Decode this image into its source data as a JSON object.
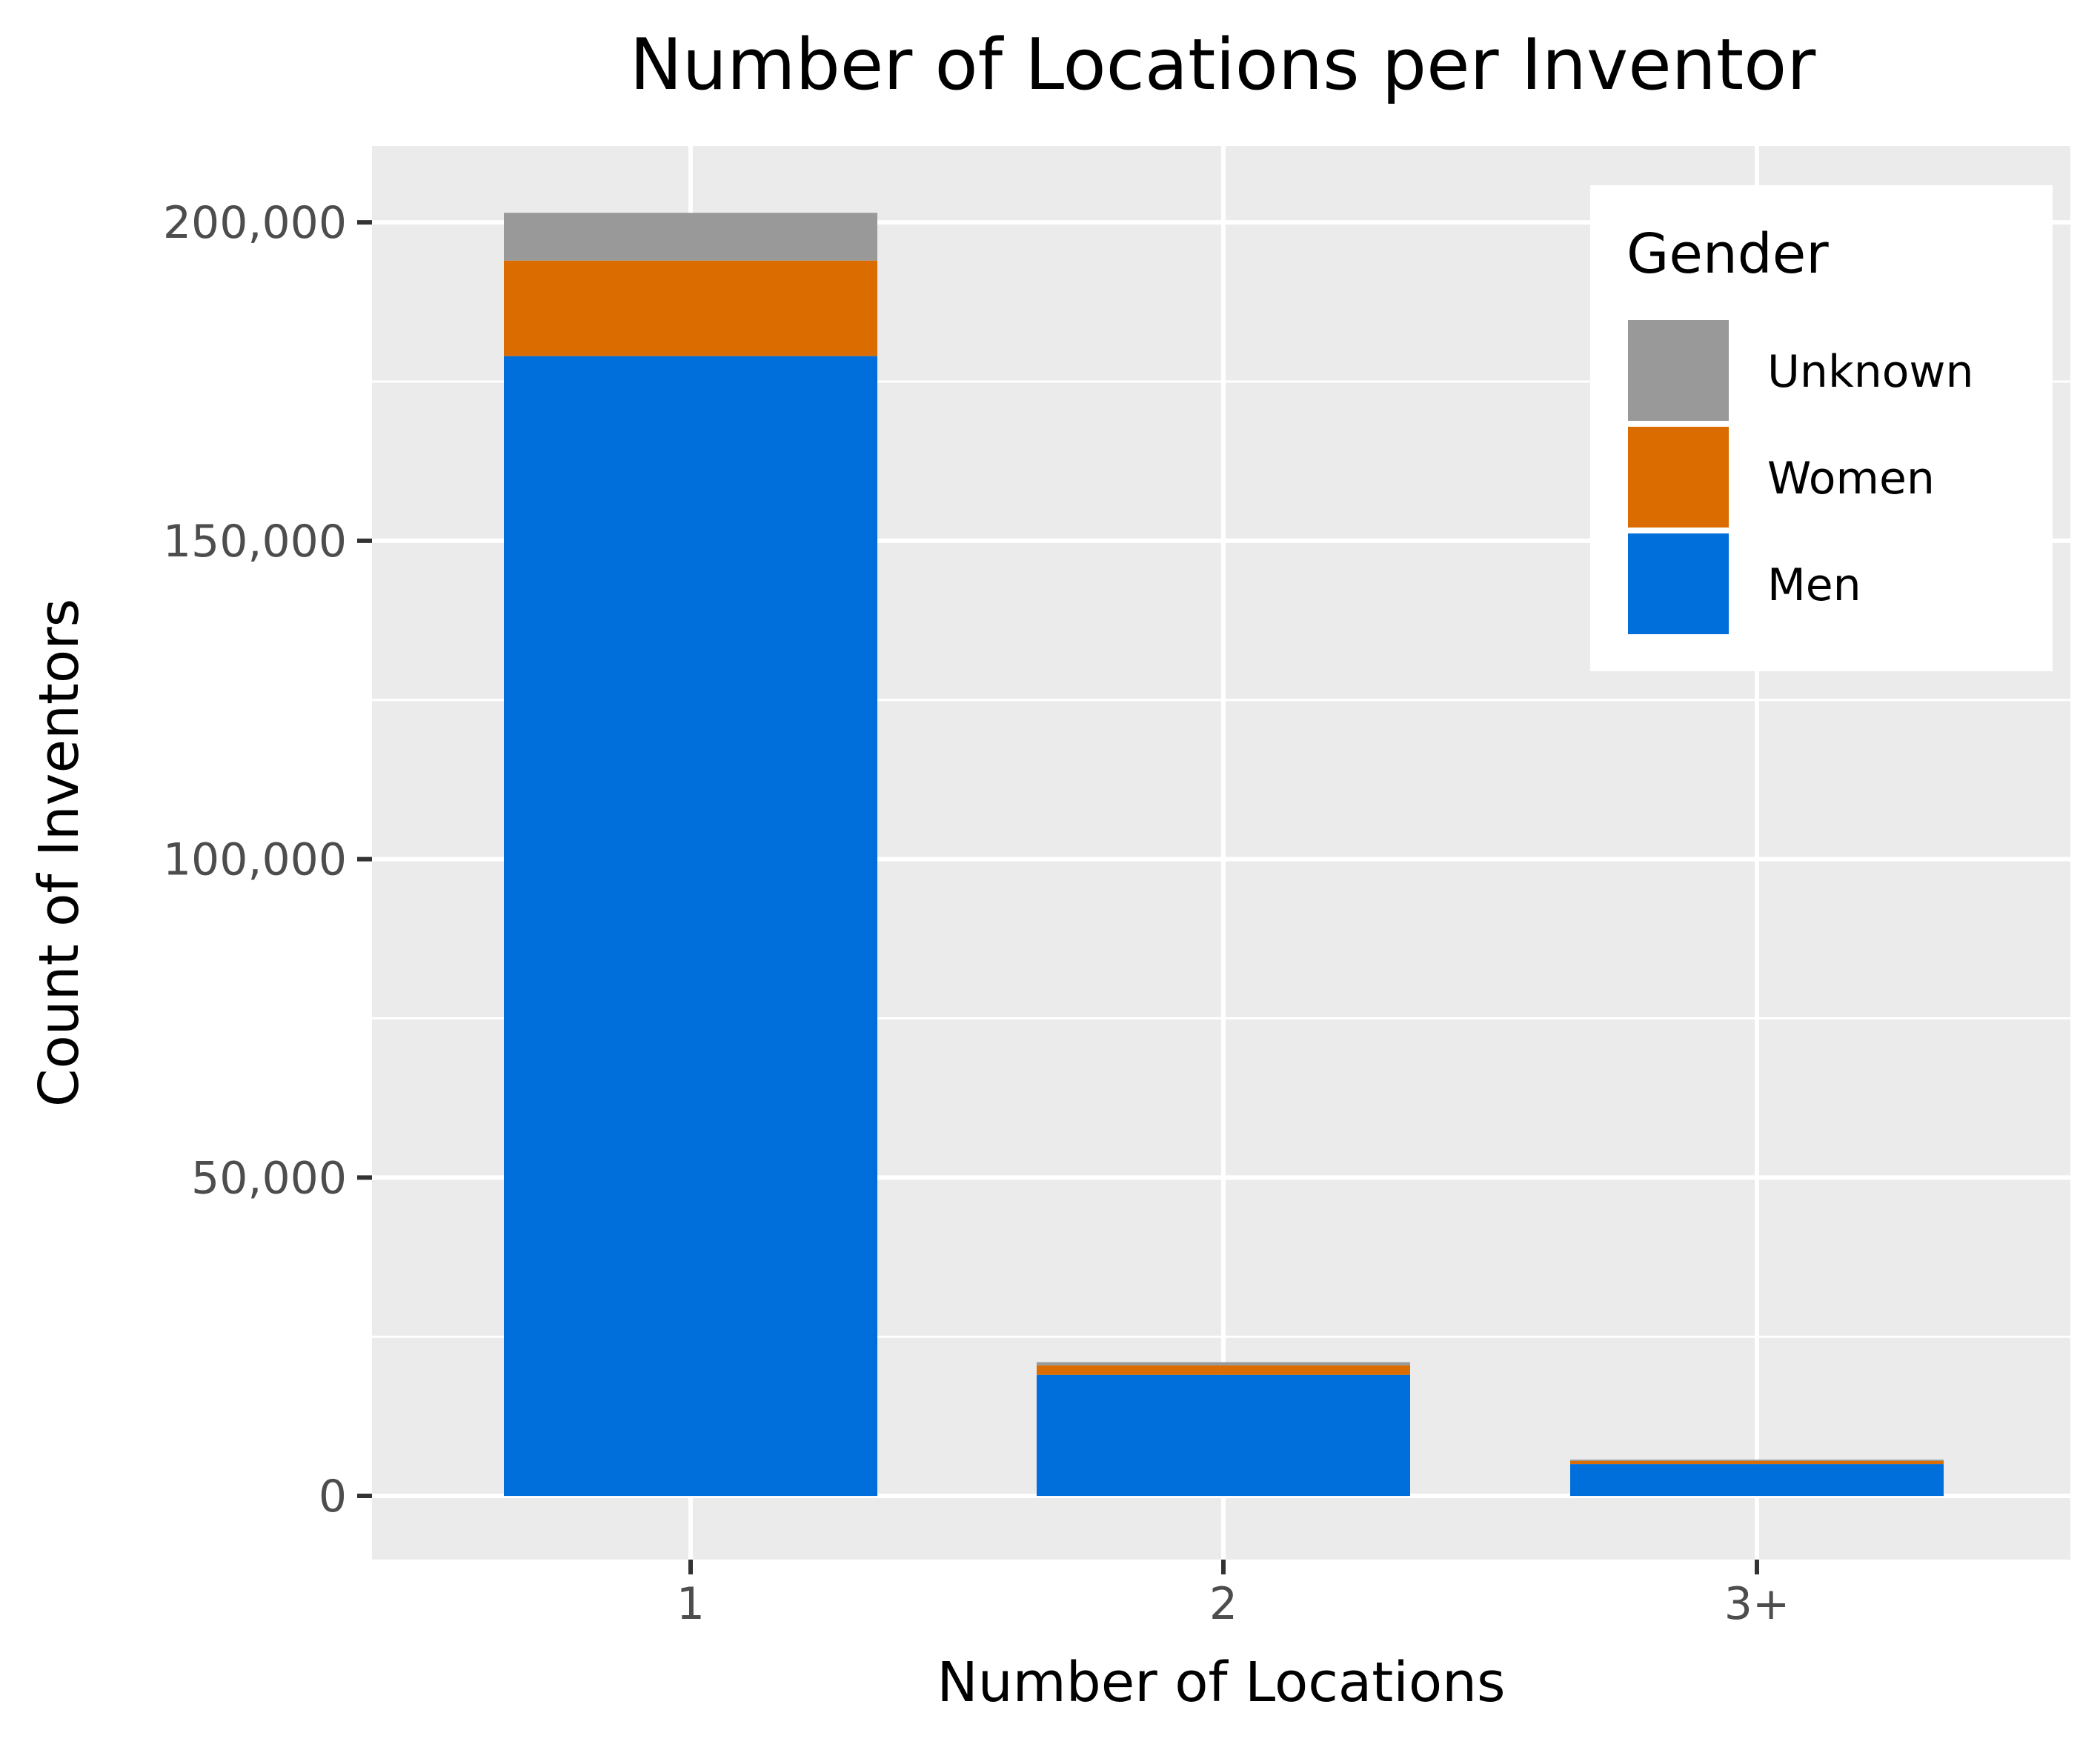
{
  "chart_data": {
    "type": "bar",
    "stacked": true,
    "title": "Number of Locations per Inventor",
    "xlabel": "Number of Locations",
    "ylabel": "Count of Inventors",
    "categories": [
      "1",
      "2",
      "3+"
    ],
    "series": [
      {
        "name": "Men",
        "color": "#006fdb",
        "values": [
          179000,
          19000,
          5000
        ]
      },
      {
        "name": "Women",
        "color": "#db6d00",
        "values": [
          15000,
          1500,
          500
        ]
      },
      {
        "name": "Unknown",
        "color": "#999999",
        "values": [
          7500,
          500,
          200
        ]
      }
    ],
    "ylim": [
      -10000,
      212000
    ],
    "yticks": [
      0,
      50000,
      100000,
      150000,
      200000
    ],
    "ytick_labels": [
      "0",
      "50,000",
      "100,000",
      "150,000",
      "200,000"
    ],
    "grid": true,
    "legend": {
      "title": "Gender",
      "position": "top-right",
      "order": [
        "Unknown",
        "Women",
        "Men"
      ]
    }
  }
}
